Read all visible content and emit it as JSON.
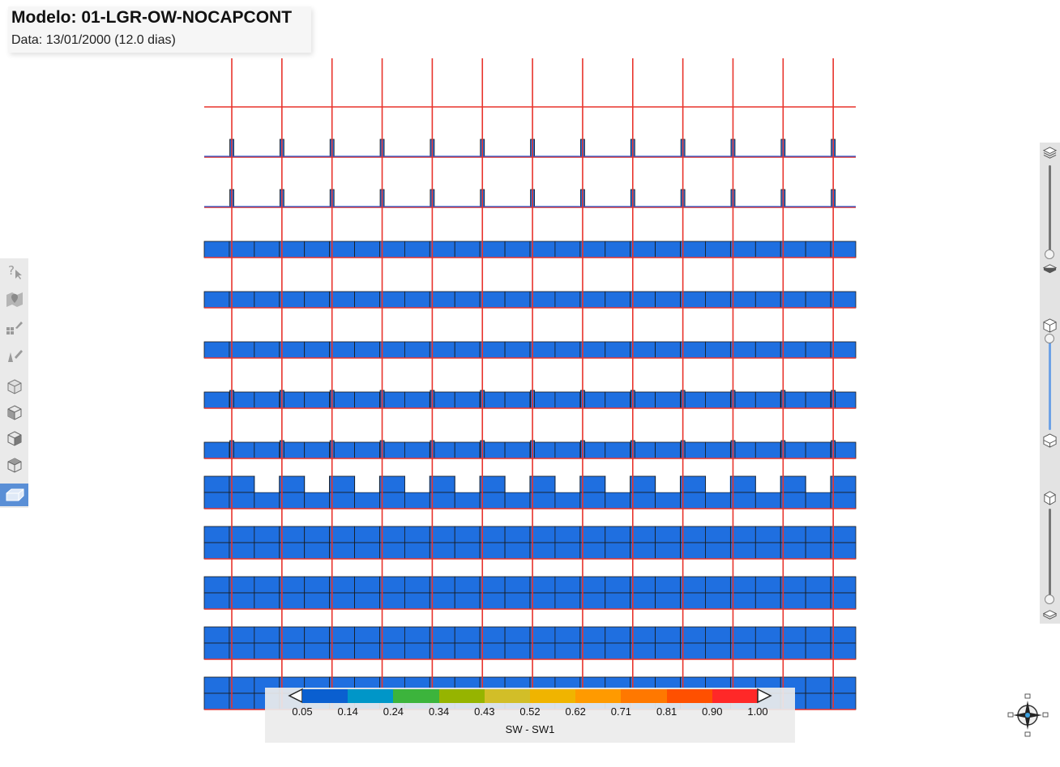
{
  "header": {
    "model_title": "Modelo: 01-LGR-OW-NOCAPCONT",
    "date_text": "Data: 13/01/2000 (12.0 dias)"
  },
  "left_toolbar": {
    "items": [
      {
        "icon": "help-pointer-icon",
        "active": false
      },
      {
        "icon": "map-pin-icon",
        "active": false
      },
      {
        "icon": "grid-well-icon",
        "active": false
      },
      {
        "icon": "well-tool-icon",
        "active": false
      },
      {
        "icon": "cube-view-1-icon",
        "active": false
      },
      {
        "icon": "cube-view-2-icon",
        "active": false
      },
      {
        "icon": "cube-view-3-icon",
        "active": false
      },
      {
        "icon": "cube-view-4-icon",
        "active": false
      },
      {
        "icon": "section-view-icon",
        "active": true
      }
    ]
  },
  "right_panel": {
    "icons": [
      "layers-top-icon",
      "layer-bottom-icon",
      "cube-top-icon",
      "cube-bottom-icon",
      "cube-small-top-icon",
      "layer-small-bottom-icon"
    ]
  },
  "grid": {
    "columns": 26,
    "well_columns": [
      1,
      3,
      5,
      7,
      9,
      11,
      13,
      15,
      17,
      19,
      21,
      23,
      25
    ],
    "rows": [
      {
        "type": "line"
      },
      {
        "type": "thin-ticks"
      },
      {
        "type": "thin-ticks"
      },
      {
        "type": "cells-1"
      },
      {
        "type": "cells-1"
      },
      {
        "type": "cells-1"
      },
      {
        "type": "cells-1-ticks"
      },
      {
        "type": "cells-1-ticks"
      },
      {
        "type": "cells-2-notched"
      },
      {
        "type": "cells-2"
      },
      {
        "type": "cells-2"
      },
      {
        "type": "cells-2"
      },
      {
        "type": "cells-2"
      }
    ],
    "cell_color": "#1f6fe0",
    "well_color": "#e8342c",
    "outline_color": "#1a1a1a"
  },
  "legend": {
    "title": "SW - SW1",
    "colors": [
      "#0a5fd0",
      "#0096c8",
      "#3cb43c",
      "#96b400",
      "#d2be28",
      "#f0b400",
      "#ff9a00",
      "#ff7800",
      "#ff5000",
      "#ff2828"
    ],
    "ticks": [
      "0.05",
      "0.14",
      "0.24",
      "0.34",
      "0.43",
      "0.52",
      "0.62",
      "0.71",
      "0.81",
      "0.90",
      "1.00"
    ]
  },
  "compass": {
    "icon": "compass-icon"
  }
}
